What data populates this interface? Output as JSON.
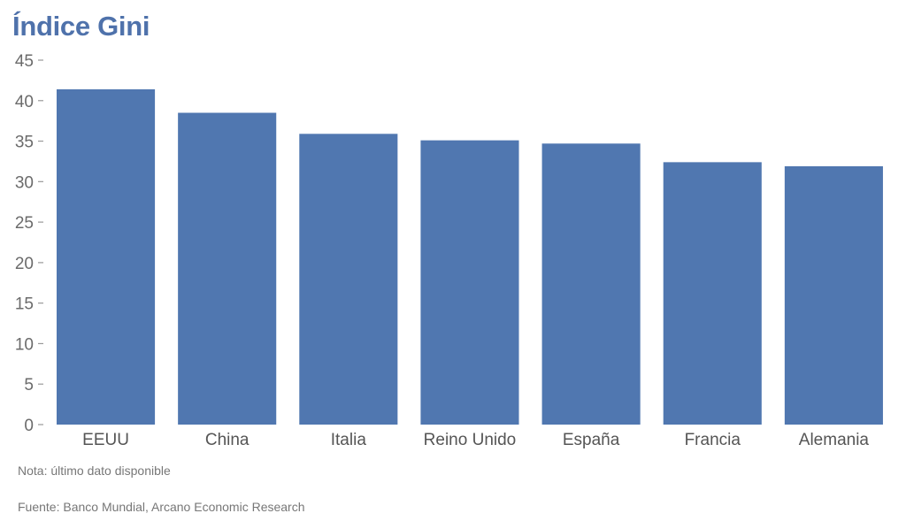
{
  "chart_data": {
    "type": "bar",
    "title": "Índice Gini",
    "categories": [
      "EEUU",
      "China",
      "Italia",
      "Reino Unido",
      "España",
      "Francia",
      "Alemania"
    ],
    "values": [
      41.4,
      38.5,
      35.9,
      35.1,
      34.7,
      32.4,
      31.9
    ],
    "ylim": [
      0,
      45
    ],
    "yticks": [
      0,
      5,
      10,
      15,
      20,
      25,
      30,
      35,
      40,
      45
    ],
    "xlabel": "",
    "ylabel": "",
    "bar_color": "#5077b0",
    "title_color": "#4f72ab",
    "grid": false
  },
  "notes": {
    "note": "Nota: último dato disponible",
    "source": "Fuente: Banco Mundial, Arcano Economic Research"
  }
}
